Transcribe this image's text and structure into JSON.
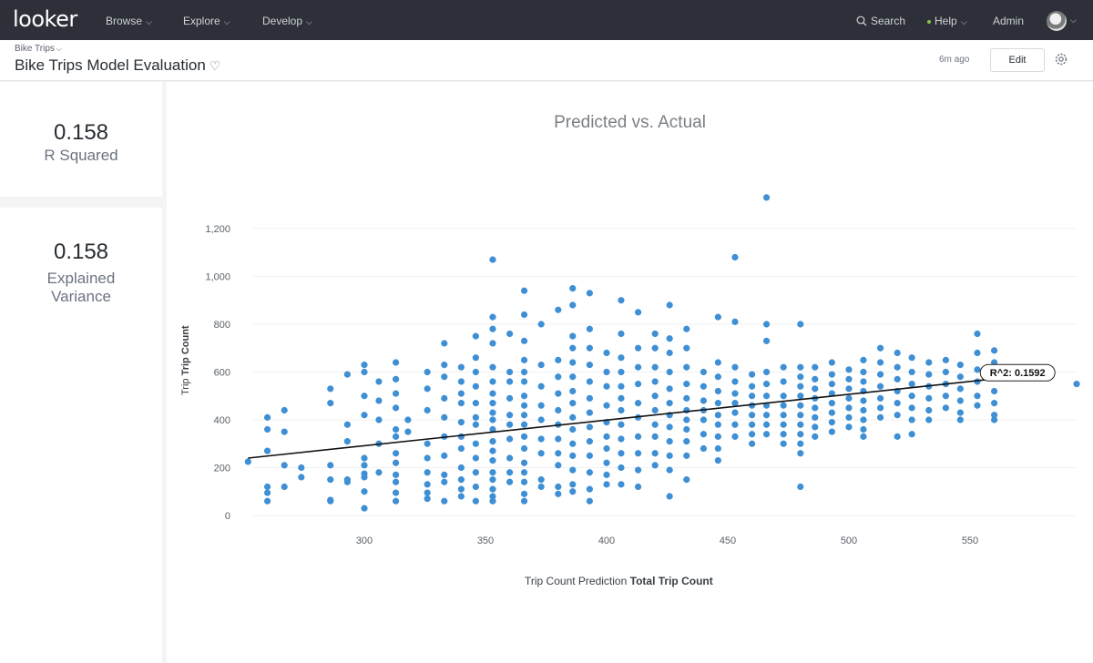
{
  "nav": {
    "logo": "looker",
    "items": [
      {
        "label": "Browse"
      },
      {
        "label": "Explore"
      },
      {
        "label": "Develop"
      }
    ],
    "search_label": "Search",
    "help_label": "Help",
    "admin_label": "Admin",
    "icons": [
      "search-icon",
      "chevron-down-icon",
      "avatar"
    ]
  },
  "header": {
    "breadcrumb": "Bike Trips",
    "title": "Bike Trips Model Evaluation",
    "updated": "6m ago",
    "edit_label": "Edit"
  },
  "tiles": [
    {
      "value": "0.158",
      "label": "R Squared"
    },
    {
      "value": "0.158",
      "label_line1": "Explained",
      "label_line2": "Variance"
    }
  ],
  "chart": {
    "title": "Predicted vs. Actual",
    "xlabel_prefix": "Trip Count Prediction",
    "xlabel_bold": "Total Trip Count",
    "ylabel_prefix": "Trip",
    "ylabel_bold": "Trip Count",
    "trend_label": "R^2: 0.1592"
  },
  "chart_data": {
    "type": "scatter",
    "title": "Predicted vs. Actual",
    "xlabel": "Trip Count Prediction Total Trip Count",
    "ylabel": "Trip Trip Count",
    "xlim": [
      252,
      594
    ],
    "ylim": [
      0,
      1300
    ],
    "xticks": [
      300,
      350,
      400,
      450,
      500,
      550
    ],
    "yticks": [
      0,
      200,
      400,
      600,
      800,
      "1,000",
      "1,200"
    ],
    "trendline": {
      "x": [
        252,
        570
      ],
      "y": [
        240,
        582
      ],
      "label": "R^2: 0.1592"
    },
    "color": "#3f8fd4",
    "points": [
      [
        252,
        225
      ],
      [
        260,
        410
      ],
      [
        260,
        360
      ],
      [
        260,
        270
      ],
      [
        260,
        120
      ],
      [
        260,
        95
      ],
      [
        260,
        60
      ],
      [
        267,
        440
      ],
      [
        267,
        350
      ],
      [
        267,
        210
      ],
      [
        267,
        120
      ],
      [
        274,
        200
      ],
      [
        274,
        160
      ],
      [
        286,
        530
      ],
      [
        286,
        470
      ],
      [
        286,
        210
      ],
      [
        286,
        150
      ],
      [
        286,
        65
      ],
      [
        286,
        60
      ],
      [
        293,
        590
      ],
      [
        293,
        380
      ],
      [
        293,
        310
      ],
      [
        293,
        150
      ],
      [
        293,
        140
      ],
      [
        300,
        630
      ],
      [
        300,
        600
      ],
      [
        300,
        500
      ],
      [
        300,
        420
      ],
      [
        300,
        240
      ],
      [
        300,
        210
      ],
      [
        300,
        175
      ],
      [
        300,
        160
      ],
      [
        300,
        100
      ],
      [
        300,
        30
      ],
      [
        306,
        560
      ],
      [
        306,
        480
      ],
      [
        306,
        400
      ],
      [
        306,
        300
      ],
      [
        306,
        180
      ],
      [
        313,
        640
      ],
      [
        313,
        570
      ],
      [
        313,
        510
      ],
      [
        313,
        450
      ],
      [
        313,
        360
      ],
      [
        313,
        330
      ],
      [
        313,
        260
      ],
      [
        313,
        220
      ],
      [
        313,
        170
      ],
      [
        313,
        140
      ],
      [
        313,
        95
      ],
      [
        313,
        60
      ],
      [
        318,
        400
      ],
      [
        318,
        350
      ],
      [
        326,
        600
      ],
      [
        326,
        530
      ],
      [
        326,
        440
      ],
      [
        326,
        300
      ],
      [
        326,
        240
      ],
      [
        326,
        180
      ],
      [
        326,
        130
      ],
      [
        326,
        95
      ],
      [
        326,
        70
      ],
      [
        333,
        720
      ],
      [
        333,
        630
      ],
      [
        333,
        580
      ],
      [
        333,
        490
      ],
      [
        333,
        410
      ],
      [
        333,
        330
      ],
      [
        333,
        250
      ],
      [
        333,
        170
      ],
      [
        333,
        140
      ],
      [
        333,
        60
      ],
      [
        340,
        620
      ],
      [
        340,
        560
      ],
      [
        340,
        510
      ],
      [
        340,
        470
      ],
      [
        340,
        390
      ],
      [
        340,
        330
      ],
      [
        340,
        280
      ],
      [
        340,
        200
      ],
      [
        340,
        150
      ],
      [
        340,
        110
      ],
      [
        340,
        80
      ],
      [
        346,
        750
      ],
      [
        346,
        660
      ],
      [
        346,
        600
      ],
      [
        346,
        540
      ],
      [
        346,
        470
      ],
      [
        346,
        410
      ],
      [
        346,
        380
      ],
      [
        346,
        300
      ],
      [
        346,
        240
      ],
      [
        346,
        180
      ],
      [
        346,
        120
      ],
      [
        346,
        60
      ],
      [
        353,
        1070
      ],
      [
        353,
        830
      ],
      [
        353,
        780
      ],
      [
        353,
        720
      ],
      [
        353,
        620
      ],
      [
        353,
        560
      ],
      [
        353,
        510
      ],
      [
        353,
        470
      ],
      [
        353,
        430
      ],
      [
        353,
        400
      ],
      [
        353,
        360
      ],
      [
        353,
        310
      ],
      [
        353,
        270
      ],
      [
        353,
        230
      ],
      [
        353,
        180
      ],
      [
        353,
        150
      ],
      [
        353,
        110
      ],
      [
        353,
        80
      ],
      [
        353,
        60
      ],
      [
        360,
        760
      ],
      [
        360,
        600
      ],
      [
        360,
        560
      ],
      [
        360,
        490
      ],
      [
        360,
        420
      ],
      [
        360,
        380
      ],
      [
        360,
        320
      ],
      [
        360,
        240
      ],
      [
        360,
        180
      ],
      [
        360,
        140
      ],
      [
        366,
        940
      ],
      [
        366,
        840
      ],
      [
        366,
        730
      ],
      [
        366,
        650
      ],
      [
        366,
        600
      ],
      [
        366,
        560
      ],
      [
        366,
        500
      ],
      [
        366,
        460
      ],
      [
        366,
        420
      ],
      [
        366,
        380
      ],
      [
        366,
        330
      ],
      [
        366,
        280
      ],
      [
        366,
        220
      ],
      [
        366,
        180
      ],
      [
        366,
        140
      ],
      [
        366,
        90
      ],
      [
        366,
        60
      ],
      [
        373,
        800
      ],
      [
        373,
        630
      ],
      [
        373,
        540
      ],
      [
        373,
        460
      ],
      [
        373,
        400
      ],
      [
        373,
        320
      ],
      [
        373,
        260
      ],
      [
        373,
        150
      ],
      [
        373,
        120
      ],
      [
        380,
        860
      ],
      [
        380,
        650
      ],
      [
        380,
        580
      ],
      [
        380,
        510
      ],
      [
        380,
        440
      ],
      [
        380,
        380
      ],
      [
        380,
        320
      ],
      [
        380,
        260
      ],
      [
        380,
        210
      ],
      [
        380,
        120
      ],
      [
        380,
        90
      ],
      [
        386,
        950
      ],
      [
        386,
        880
      ],
      [
        386,
        750
      ],
      [
        386,
        700
      ],
      [
        386,
        640
      ],
      [
        386,
        580
      ],
      [
        386,
        520
      ],
      [
        386,
        470
      ],
      [
        386,
        410
      ],
      [
        386,
        360
      ],
      [
        386,
        300
      ],
      [
        386,
        250
      ],
      [
        386,
        190
      ],
      [
        386,
        130
      ],
      [
        386,
        100
      ],
      [
        393,
        930
      ],
      [
        393,
        780
      ],
      [
        393,
        700
      ],
      [
        393,
        630
      ],
      [
        393,
        560
      ],
      [
        393,
        490
      ],
      [
        393,
        430
      ],
      [
        393,
        370
      ],
      [
        393,
        310
      ],
      [
        393,
        250
      ],
      [
        393,
        180
      ],
      [
        393,
        110
      ],
      [
        393,
        60
      ],
      [
        400,
        680
      ],
      [
        400,
        600
      ],
      [
        400,
        540
      ],
      [
        400,
        460
      ],
      [
        400,
        390
      ],
      [
        400,
        330
      ],
      [
        400,
        280
      ],
      [
        400,
        220
      ],
      [
        400,
        170
      ],
      [
        400,
        130
      ],
      [
        406,
        900
      ],
      [
        406,
        760
      ],
      [
        406,
        660
      ],
      [
        406,
        600
      ],
      [
        406,
        540
      ],
      [
        406,
        490
      ],
      [
        406,
        440
      ],
      [
        406,
        380
      ],
      [
        406,
        320
      ],
      [
        406,
        260
      ],
      [
        406,
        200
      ],
      [
        406,
        130
      ],
      [
        413,
        850
      ],
      [
        413,
        700
      ],
      [
        413,
        620
      ],
      [
        413,
        550
      ],
      [
        413,
        470
      ],
      [
        413,
        410
      ],
      [
        413,
        330
      ],
      [
        413,
        260
      ],
      [
        413,
        190
      ],
      [
        413,
        120
      ],
      [
        420,
        760
      ],
      [
        420,
        700
      ],
      [
        420,
        620
      ],
      [
        420,
        560
      ],
      [
        420,
        500
      ],
      [
        420,
        440
      ],
      [
        420,
        380
      ],
      [
        420,
        330
      ],
      [
        420,
        260
      ],
      [
        420,
        210
      ],
      [
        426,
        880
      ],
      [
        426,
        740
      ],
      [
        426,
        680
      ],
      [
        426,
        600
      ],
      [
        426,
        530
      ],
      [
        426,
        470
      ],
      [
        426,
        420
      ],
      [
        426,
        370
      ],
      [
        426,
        310
      ],
      [
        426,
        250
      ],
      [
        426,
        190
      ],
      [
        426,
        80
      ],
      [
        433,
        780
      ],
      [
        433,
        700
      ],
      [
        433,
        620
      ],
      [
        433,
        550
      ],
      [
        433,
        490
      ],
      [
        433,
        440
      ],
      [
        433,
        400
      ],
      [
        433,
        360
      ],
      [
        433,
        310
      ],
      [
        433,
        250
      ],
      [
        433,
        150
      ],
      [
        440,
        600
      ],
      [
        440,
        540
      ],
      [
        440,
        480
      ],
      [
        440,
        440
      ],
      [
        440,
        400
      ],
      [
        440,
        340
      ],
      [
        440,
        280
      ],
      [
        446,
        830
      ],
      [
        446,
        640
      ],
      [
        446,
        580
      ],
      [
        446,
        520
      ],
      [
        446,
        470
      ],
      [
        446,
        420
      ],
      [
        446,
        380
      ],
      [
        446,
        330
      ],
      [
        446,
        280
      ],
      [
        446,
        230
      ],
      [
        453,
        1080
      ],
      [
        453,
        810
      ],
      [
        453,
        620
      ],
      [
        453,
        560
      ],
      [
        453,
        510
      ],
      [
        453,
        470
      ],
      [
        453,
        430
      ],
      [
        453,
        380
      ],
      [
        453,
        330
      ],
      [
        460,
        590
      ],
      [
        460,
        540
      ],
      [
        460,
        500
      ],
      [
        460,
        460
      ],
      [
        460,
        420
      ],
      [
        460,
        380
      ],
      [
        460,
        340
      ],
      [
        460,
        300
      ],
      [
        466,
        1330
      ],
      [
        466,
        800
      ],
      [
        466,
        730
      ],
      [
        466,
        600
      ],
      [
        466,
        550
      ],
      [
        466,
        500
      ],
      [
        466,
        460
      ],
      [
        466,
        420
      ],
      [
        466,
        380
      ],
      [
        466,
        340
      ],
      [
        473,
        620
      ],
      [
        473,
        560
      ],
      [
        473,
        500
      ],
      [
        473,
        460
      ],
      [
        473,
        420
      ],
      [
        473,
        380
      ],
      [
        473,
        340
      ],
      [
        473,
        300
      ],
      [
        480,
        800
      ],
      [
        480,
        620
      ],
      [
        480,
        580
      ],
      [
        480,
        540
      ],
      [
        480,
        500
      ],
      [
        480,
        460
      ],
      [
        480,
        420
      ],
      [
        480,
        380
      ],
      [
        480,
        340
      ],
      [
        480,
        300
      ],
      [
        480,
        260
      ],
      [
        480,
        120
      ],
      [
        486,
        620
      ],
      [
        486,
        570
      ],
      [
        486,
        530
      ],
      [
        486,
        490
      ],
      [
        486,
        450
      ],
      [
        486,
        410
      ],
      [
        486,
        370
      ],
      [
        486,
        330
      ],
      [
        493,
        640
      ],
      [
        493,
        590
      ],
      [
        493,
        550
      ],
      [
        493,
        510
      ],
      [
        493,
        470
      ],
      [
        493,
        430
      ],
      [
        493,
        390
      ],
      [
        493,
        350
      ],
      [
        500,
        610
      ],
      [
        500,
        570
      ],
      [
        500,
        530
      ],
      [
        500,
        490
      ],
      [
        500,
        450
      ],
      [
        500,
        410
      ],
      [
        500,
        370
      ],
      [
        506,
        650
      ],
      [
        506,
        600
      ],
      [
        506,
        560
      ],
      [
        506,
        520
      ],
      [
        506,
        480
      ],
      [
        506,
        440
      ],
      [
        506,
        400
      ],
      [
        506,
        360
      ],
      [
        506,
        330
      ],
      [
        513,
        700
      ],
      [
        513,
        640
      ],
      [
        513,
        590
      ],
      [
        513,
        540
      ],
      [
        513,
        490
      ],
      [
        513,
        450
      ],
      [
        513,
        410
      ],
      [
        520,
        680
      ],
      [
        520,
        620
      ],
      [
        520,
        570
      ],
      [
        520,
        520
      ],
      [
        520,
        470
      ],
      [
        520,
        420
      ],
      [
        520,
        330
      ],
      [
        526,
        660
      ],
      [
        526,
        600
      ],
      [
        526,
        550
      ],
      [
        526,
        500
      ],
      [
        526,
        450
      ],
      [
        526,
        400
      ],
      [
        526,
        340
      ],
      [
        533,
        640
      ],
      [
        533,
        590
      ],
      [
        533,
        540
      ],
      [
        533,
        490
      ],
      [
        533,
        440
      ],
      [
        533,
        400
      ],
      [
        540,
        650
      ],
      [
        540,
        600
      ],
      [
        540,
        550
      ],
      [
        540,
        500
      ],
      [
        540,
        450
      ],
      [
        546,
        630
      ],
      [
        546,
        580
      ],
      [
        546,
        530
      ],
      [
        546,
        480
      ],
      [
        546,
        430
      ],
      [
        546,
        400
      ],
      [
        553,
        760
      ],
      [
        553,
        680
      ],
      [
        553,
        610
      ],
      [
        553,
        560
      ],
      [
        553,
        500
      ],
      [
        553,
        460
      ],
      [
        560,
        690
      ],
      [
        560,
        640
      ],
      [
        560,
        580
      ],
      [
        560,
        520
      ],
      [
        560,
        470
      ],
      [
        560,
        420
      ],
      [
        560,
        400
      ],
      [
        567,
        580
      ],
      [
        594,
        550
      ]
    ]
  }
}
